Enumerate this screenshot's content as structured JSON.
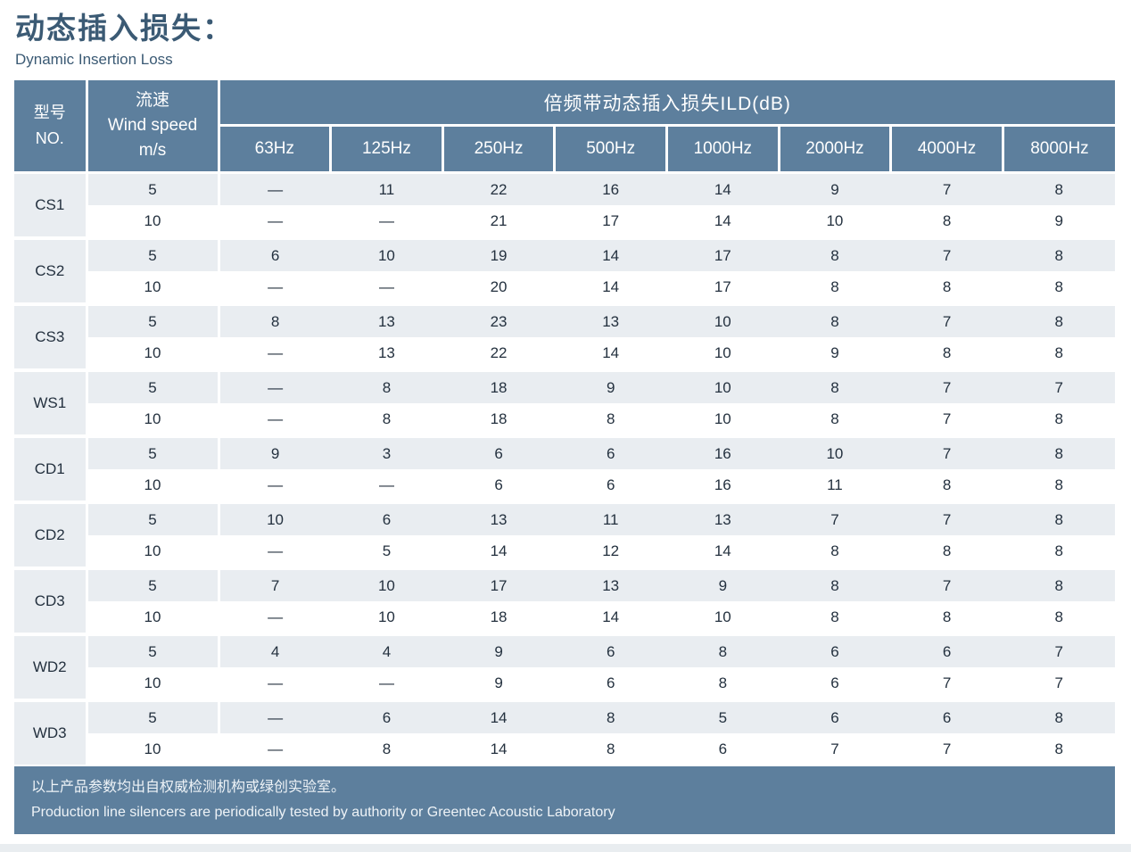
{
  "page": {
    "title_cn": "动态插入损失：",
    "title_en": "Dynamic Insertion Loss"
  },
  "colors": {
    "header_bg": "#5d7f9d",
    "row_alt_bg": "#e9edf1",
    "row_bg": "#ffffff",
    "title_text": "#3b5a74",
    "body_text": "#24313f",
    "header_text": "#ffffff",
    "footer_bg": "#5d7f9d",
    "footer_text": "#eef3f7"
  },
  "table": {
    "model_header": {
      "line1": "型号",
      "line2": "NO."
    },
    "speed_header": {
      "line1": "流速",
      "line2": "Wind speed",
      "line3": "m/s"
    },
    "band_header": "倍频带动态插入损失ILD(dB)",
    "freq_headers": [
      "63Hz",
      "125Hz",
      "250Hz",
      "500Hz",
      "1000Hz",
      "2000Hz",
      "4000Hz",
      "8000Hz"
    ],
    "groups": [
      {
        "model": "CS1",
        "rows": [
          {
            "speed": "5",
            "values": [
              "—",
              "11",
              "22",
              "16",
              "14",
              "9",
              "7",
              "8"
            ]
          },
          {
            "speed": "10",
            "values": [
              "—",
              "—",
              "21",
              "17",
              "14",
              "10",
              "8",
              "9"
            ]
          }
        ]
      },
      {
        "model": "CS2",
        "rows": [
          {
            "speed": "5",
            "values": [
              "6",
              "10",
              "19",
              "14",
              "17",
              "8",
              "7",
              "8"
            ]
          },
          {
            "speed": "10",
            "values": [
              "—",
              "—",
              "20",
              "14",
              "17",
              "8",
              "8",
              "8"
            ]
          }
        ]
      },
      {
        "model": "CS3",
        "rows": [
          {
            "speed": "5",
            "values": [
              "8",
              "13",
              "23",
              "13",
              "10",
              "8",
              "7",
              "8"
            ]
          },
          {
            "speed": "10",
            "values": [
              "—",
              "13",
              "22",
              "14",
              "10",
              "9",
              "8",
              "8"
            ]
          }
        ]
      },
      {
        "model": "WS1",
        "rows": [
          {
            "speed": "5",
            "values": [
              "—",
              "8",
              "18",
              "9",
              "10",
              "8",
              "7",
              "7"
            ]
          },
          {
            "speed": "10",
            "values": [
              "—",
              "8",
              "18",
              "8",
              "10",
              "8",
              "7",
              "8"
            ]
          }
        ]
      },
      {
        "model": "CD1",
        "rows": [
          {
            "speed": "5",
            "values": [
              "9",
              "3",
              "6",
              "6",
              "16",
              "10",
              "7",
              "8"
            ]
          },
          {
            "speed": "10",
            "values": [
              "—",
              "—",
              "6",
              "6",
              "16",
              "11",
              "8",
              "8"
            ]
          }
        ]
      },
      {
        "model": "CD2",
        "rows": [
          {
            "speed": "5",
            "values": [
              "10",
              "6",
              "13",
              "11",
              "13",
              "7",
              "7",
              "8"
            ]
          },
          {
            "speed": "10",
            "values": [
              "—",
              "5",
              "14",
              "12",
              "14",
              "8",
              "8",
              "8"
            ]
          }
        ]
      },
      {
        "model": "CD3",
        "rows": [
          {
            "speed": "5",
            "values": [
              "7",
              "10",
              "17",
              "13",
              "9",
              "8",
              "7",
              "8"
            ]
          },
          {
            "speed": "10",
            "values": [
              "—",
              "10",
              "18",
              "14",
              "10",
              "8",
              "8",
              "8"
            ]
          }
        ]
      },
      {
        "model": "WD2",
        "rows": [
          {
            "speed": "5",
            "values": [
              "4",
              "4",
              "9",
              "6",
              "8",
              "6",
              "6",
              "7"
            ]
          },
          {
            "speed": "10",
            "values": [
              "—",
              "—",
              "9",
              "6",
              "8",
              "6",
              "7",
              "7"
            ]
          }
        ]
      },
      {
        "model": "WD3",
        "rows": [
          {
            "speed": "5",
            "values": [
              "—",
              "6",
              "14",
              "8",
              "5",
              "6",
              "6",
              "8"
            ]
          },
          {
            "speed": "10",
            "values": [
              "—",
              "8",
              "14",
              "8",
              "6",
              "7",
              "7",
              "8"
            ]
          }
        ]
      }
    ]
  },
  "footer": {
    "line1_cn": "以上产品参数均出自权威检测机构或绿创实验室。",
    "line2_en": "Production line silencers are periodically tested by authority or Greentec Acoustic Laboratory"
  }
}
